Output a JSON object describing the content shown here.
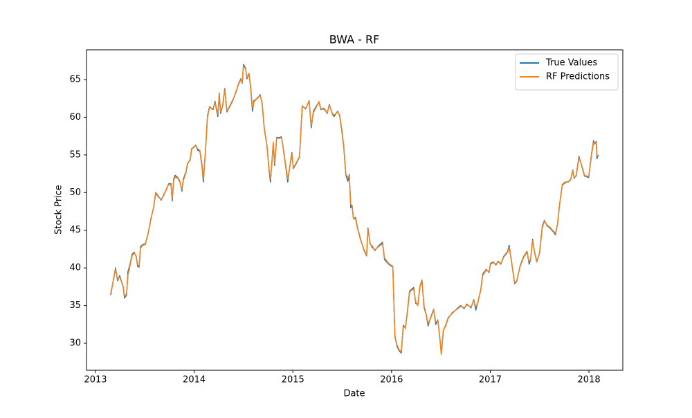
{
  "chart_data": {
    "type": "line",
    "title": "BWA - RF",
    "x_label": "Date",
    "y_label": "Stock Price",
    "x": [
      2013.154,
      2013.203,
      2013.224,
      2013.245,
      2013.28,
      2013.294,
      2013.315,
      2013.329,
      2013.35,
      2013.371,
      2013.392,
      2013.413,
      2013.427,
      2013.442,
      2013.456,
      2013.477,
      2013.505,
      2013.533,
      2013.561,
      2013.589,
      2013.61,
      2013.638,
      2013.666,
      2013.694,
      2013.722,
      2013.743,
      2013.764,
      2013.778,
      2013.792,
      2013.806,
      2013.834,
      2013.855,
      2013.876,
      2013.89,
      2013.918,
      2013.932,
      2013.96,
      2013.974,
      2013.995,
      2014.016,
      2014.037,
      2014.058,
      2014.079,
      2014.093,
      2014.114,
      2014.135,
      2014.156,
      2014.191,
      2014.212,
      2014.226,
      2014.24,
      2014.254,
      2014.268,
      2014.289,
      2014.31,
      2014.332,
      2014.353,
      2014.388,
      2014.423,
      2014.451,
      2014.472,
      2014.486,
      2014.5,
      2014.521,
      2014.535,
      2014.556,
      2014.57,
      2014.591,
      2014.605,
      2014.64,
      2014.668,
      2014.689,
      2014.71,
      2014.738,
      2014.759,
      2014.773,
      2014.787,
      2014.801,
      2014.815,
      2014.836,
      2014.864,
      2014.885,
      2014.906,
      2014.927,
      2014.948,
      2014.969,
      2014.99,
      2015.004,
      2015.032,
      2015.067,
      2015.095,
      2015.13,
      2015.165,
      2015.186,
      2015.208,
      2015.243,
      2015.264,
      2015.285,
      2015.306,
      2015.327,
      2015.348,
      2015.369,
      2015.404,
      2015.418,
      2015.453,
      2015.474,
      2015.495,
      2015.516,
      2015.537,
      2015.558,
      2015.572,
      2015.586,
      2015.6,
      2015.614,
      2015.635,
      2015.656,
      2015.684,
      2015.719,
      2015.747,
      2015.761,
      2015.782,
      2015.803,
      2015.831,
      2015.866,
      2015.908,
      2015.929,
      2015.971,
      2016.013,
      2016.034,
      2016.055,
      2016.077,
      2016.098,
      2016.119,
      2016.14,
      2016.161,
      2016.182,
      2016.196,
      2016.224,
      2016.245,
      2016.266,
      2016.287,
      2016.308,
      2016.329,
      2016.35,
      2016.371,
      2016.392,
      2016.427,
      2016.448,
      2016.469,
      2016.49,
      2016.504,
      2016.525,
      2016.546,
      2016.574,
      2016.616,
      2016.672,
      2016.7,
      2016.735,
      2016.763,
      2016.805,
      2016.833,
      2016.854,
      2016.875,
      2016.903,
      2016.924,
      2016.959,
      2016.988,
      2017.002,
      2017.03,
      2017.058,
      2017.079,
      2017.107,
      2017.135,
      2017.177,
      2017.191,
      2017.219,
      2017.247,
      2017.268,
      2017.303,
      2017.338,
      2017.373,
      2017.394,
      2017.408,
      2017.429,
      2017.45,
      2017.471,
      2017.499,
      2017.527,
      2017.548,
      2017.576,
      2017.604,
      2017.639,
      2017.66,
      2017.681,
      2017.702,
      2017.73,
      2017.758,
      2017.793,
      2017.815,
      2017.836,
      2017.85,
      2017.871,
      2017.899,
      2017.927,
      2017.955,
      2017.997,
      2018.025,
      2018.046,
      2018.06,
      2018.074,
      2018.081,
      2018.095
    ],
    "series": [
      {
        "name": "True Values",
        "color": "#1f77b4",
        "values": [
          36.4,
          40.0,
          38.3,
          39.0,
          37.5,
          36.0,
          36.4,
          39.5,
          40.5,
          41.8,
          42.1,
          41.5,
          40.2,
          40.1,
          42.8,
          43.1,
          43.2,
          44.5,
          46.5,
          48.0,
          50.0,
          49.5,
          49.0,
          49.8,
          50.5,
          51.2,
          51.2,
          48.9,
          51.8,
          52.3,
          52.0,
          51.5,
          50.2,
          51.8,
          52.8,
          53.8,
          54.4,
          55.8,
          56.0,
          56.3,
          55.6,
          55.5,
          53.5,
          51.4,
          55.5,
          60.2,
          61.4,
          61.0,
          62.1,
          61.0,
          60.1,
          63.2,
          60.5,
          61.6,
          63.8,
          60.7,
          61.3,
          62.2,
          63.3,
          64.5,
          65.1,
          64.5,
          67.0,
          66.5,
          65.1,
          65.8,
          64.2,
          60.8,
          62.2,
          62.5,
          63.0,
          61.8,
          58.5,
          56.2,
          52.9,
          51.4,
          54.0,
          56.5,
          53.6,
          57.3,
          57.3,
          57.4,
          55.5,
          53.5,
          51.4,
          53.5,
          55.3,
          53.2,
          53.8,
          54.7,
          61.5,
          61.1,
          62.2,
          58.6,
          60.8,
          61.6,
          62.0,
          61.0,
          61.2,
          61.0,
          60.5,
          61.7,
          60.3,
          60.1,
          60.8,
          60.2,
          58.3,
          56.0,
          52.3,
          51.5,
          52.4,
          48.0,
          48.3,
          46.5,
          46.7,
          45.3,
          43.9,
          42.4,
          41.6,
          45.3,
          43.2,
          42.9,
          42.3,
          42.9,
          43.4,
          41.1,
          40.5,
          40.1,
          31.0,
          29.6,
          29.0,
          28.7,
          32.4,
          32.0,
          34.3,
          36.9,
          37.1,
          37.4,
          35.3,
          35.1,
          37.5,
          38.4,
          34.8,
          33.8,
          32.3,
          33.3,
          34.5,
          32.5,
          33.1,
          30.5,
          28.6,
          31.7,
          32.3,
          33.4,
          34.0,
          34.7,
          35.0,
          34.6,
          35.2,
          34.7,
          35.8,
          34.4,
          35.5,
          37.0,
          39.2,
          39.8,
          39.4,
          40.6,
          40.8,
          40.4,
          40.9,
          40.5,
          41.5,
          42.2,
          43.0,
          40.5,
          37.9,
          38.2,
          40.3,
          41.5,
          42.2,
          40.5,
          41.0,
          43.8,
          42.0,
          40.8,
          42.0,
          45.5,
          46.3,
          45.6,
          45.3,
          44.8,
          44.4,
          45.8,
          48.4,
          51.0,
          51.3,
          51.5,
          51.7,
          53.0,
          51.9,
          52.3,
          54.8,
          53.5,
          52.2,
          52.0,
          55.0,
          56.9,
          56.5,
          56.8,
          54.5,
          55.0
        ]
      },
      {
        "name": "RF Predictions",
        "color": "#ff7f0e",
        "values": [
          36.6,
          39.8,
          38.5,
          38.8,
          37.6,
          36.2,
          36.6,
          39.0,
          40.3,
          41.6,
          42.0,
          41.6,
          40.4,
          40.3,
          42.6,
          43.0,
          43.1,
          44.6,
          46.4,
          48.1,
          49.9,
          49.4,
          49.1,
          49.7,
          50.6,
          51.1,
          51.0,
          49.2,
          51.6,
          52.1,
          51.9,
          51.4,
          50.4,
          51.6,
          52.7,
          53.9,
          54.3,
          55.7,
          56.1,
          56.2,
          55.8,
          55.6,
          53.8,
          51.8,
          55.3,
          60.0,
          61.3,
          61.1,
          61.9,
          61.2,
          60.4,
          63.0,
          60.7,
          61.5,
          63.6,
          60.9,
          61.2,
          62.1,
          63.4,
          64.4,
          65.0,
          64.6,
          66.8,
          66.4,
          65.3,
          65.7,
          64.4,
          61.2,
          62.0,
          62.6,
          62.9,
          61.9,
          58.7,
          56.1,
          53.1,
          51.8,
          53.8,
          56.7,
          53.9,
          57.2,
          57.2,
          57.3,
          55.6,
          53.7,
          51.8,
          53.4,
          55.1,
          53.3,
          53.9,
          54.8,
          61.4,
          61.2,
          62.1,
          58.9,
          60.6,
          61.5,
          62.1,
          61.1,
          61.1,
          60.9,
          60.6,
          61.6,
          60.4,
          60.3,
          60.7,
          60.3,
          58.5,
          56.2,
          52.4,
          52.0,
          52.2,
          48.5,
          48.1,
          46.6,
          46.5,
          45.2,
          43.8,
          42.5,
          41.7,
          45.1,
          43.3,
          42.7,
          42.4,
          42.8,
          43.2,
          41.3,
          40.6,
          40.2,
          30.8,
          29.8,
          29.1,
          28.9,
          32.2,
          32.1,
          34.1,
          36.7,
          37.0,
          37.2,
          35.5,
          35.0,
          37.4,
          38.3,
          35.0,
          33.9,
          32.6,
          33.2,
          34.4,
          32.8,
          33.0,
          30.7,
          28.5,
          31.8,
          32.2,
          33.3,
          34.1,
          34.6,
          34.9,
          34.7,
          35.1,
          34.8,
          35.7,
          34.8,
          35.4,
          37.1,
          39.0,
          39.7,
          39.5,
          40.5,
          40.7,
          40.5,
          40.8,
          40.6,
          41.4,
          42.1,
          42.7,
          40.6,
          38.0,
          38.3,
          40.2,
          41.4,
          42.1,
          40.8,
          41.1,
          43.6,
          42.1,
          40.9,
          41.9,
          45.3,
          46.2,
          45.7,
          45.4,
          44.9,
          44.6,
          45.7,
          48.3,
          51.1,
          51.4,
          51.4,
          51.8,
          52.9,
          52.0,
          52.2,
          54.6,
          53.6,
          52.3,
          52.1,
          54.8,
          56.7,
          56.4,
          56.7,
          54.9,
          54.8
        ]
      }
    ],
    "xlim": [
      2012.909,
      2018.343
    ],
    "ylim": [
      26.42,
      68.95
    ],
    "xticks": [
      2013,
      2014,
      2015,
      2016,
      2017,
      2018
    ],
    "yticks": [
      30,
      35,
      40,
      45,
      50,
      55,
      60,
      65
    ],
    "grid": false,
    "legend": "upper right"
  }
}
